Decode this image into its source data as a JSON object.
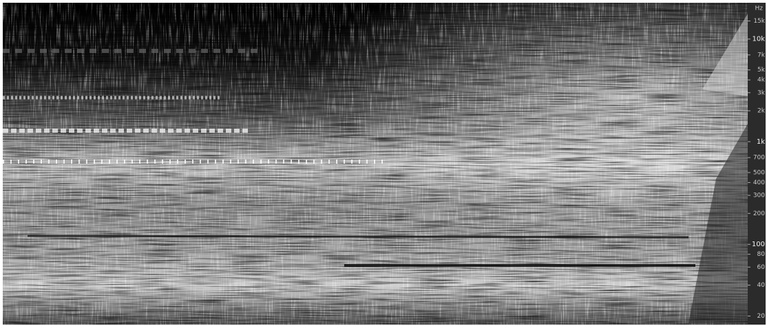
{
  "chart_data": {
    "type": "spectrogram",
    "y_label": "Hz",
    "yscale": "log",
    "ylim": [
      16,
      24000
    ],
    "yticks": [
      20,
      40,
      60,
      80,
      100,
      200,
      300,
      400,
      500,
      700,
      {
        "value": 1000,
        "label": "1k"
      },
      {
        "value": 2000,
        "label": "2k"
      },
      {
        "value": 3000,
        "label": "3k"
      },
      {
        "value": 4000,
        "label": "4k"
      },
      {
        "value": 5000,
        "label": "5k"
      },
      {
        "value": 7000,
        "label": "7k"
      },
      {
        "value": 10000,
        "label": "10k"
      },
      {
        "value": 15000,
        "label": "15k"
      }
    ]
  }
}
